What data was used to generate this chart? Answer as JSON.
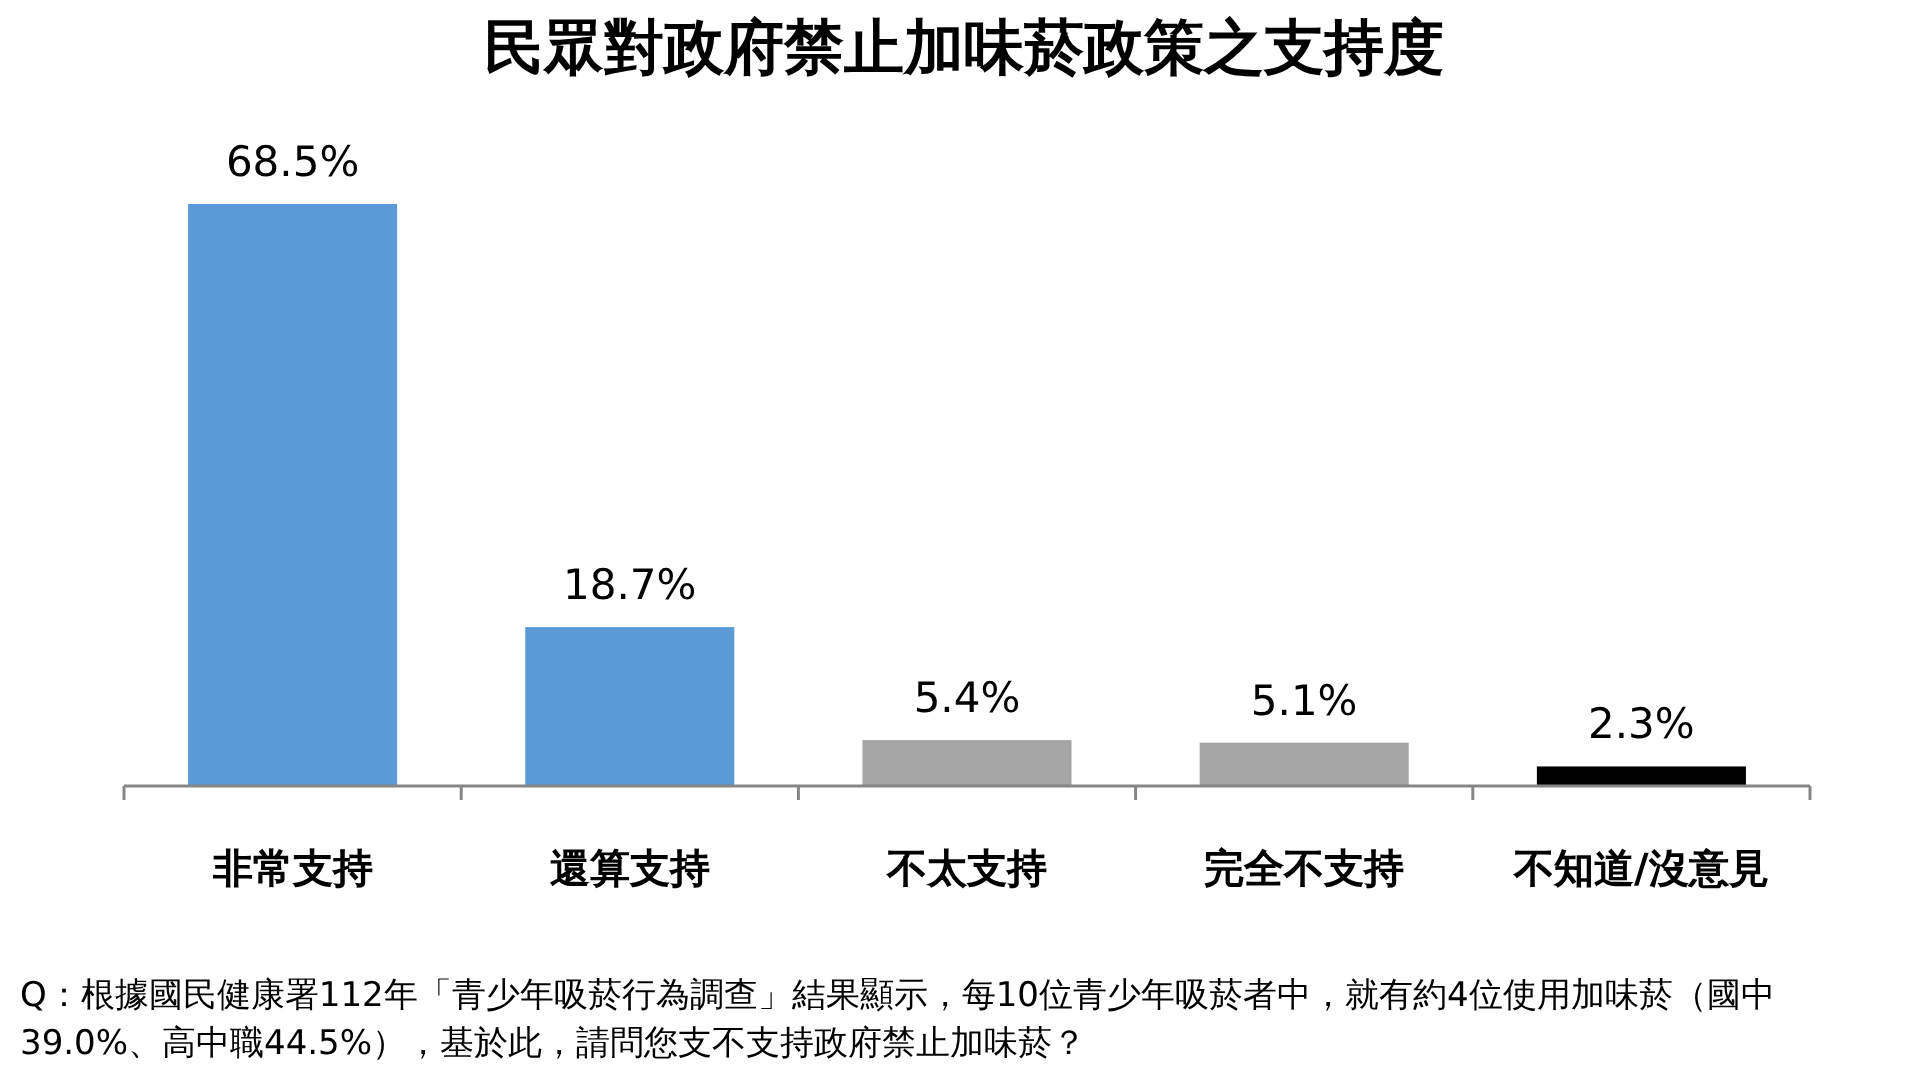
{
  "chart_data": {
    "type": "bar",
    "title": "民眾對政府禁止加味菸政策之支持度",
    "categories": [
      "非常支持",
      "還算支持",
      "不太支持",
      "完全不支持",
      "不知道/沒意見"
    ],
    "values": [
      68.5,
      18.7,
      5.4,
      5.1,
      2.3
    ],
    "colors": [
      "#5b9bd5",
      "#5b9bd5",
      "#a5a5a5",
      "#a5a5a5",
      "#000000"
    ],
    "value_labels": [
      "68.5%",
      "18.7%",
      "5.4%",
      "5.1%",
      "2.3%"
    ],
    "annotations": [
      "Q：根據國民健康署112年「青少年吸菸行為調查」結果顯示，每10位青少年吸菸者中，就有約4位使用加味菸（國中39.0%、高中職44.5%），基於此，請問您支不支持政府禁止加味菸？"
    ]
  }
}
